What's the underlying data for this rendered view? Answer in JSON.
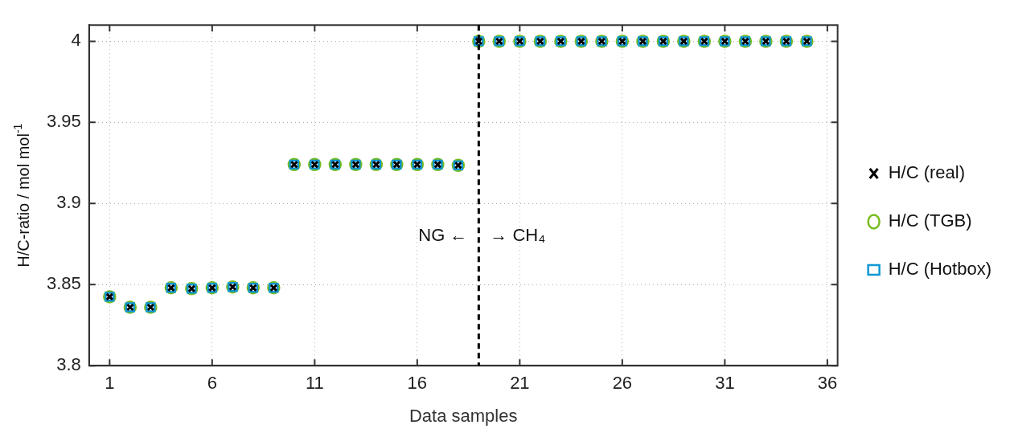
{
  "chart_data": {
    "type": "scatter",
    "xlabel": "Data samples",
    "ylabel": "H/C-ratio / mol mol$^{-1}$",
    "x": [
      1,
      2,
      3,
      4,
      5,
      6,
      7,
      8,
      9,
      10,
      11,
      12,
      13,
      14,
      15,
      16,
      17,
      18,
      19,
      20,
      21,
      22,
      23,
      24,
      25,
      26,
      27,
      28,
      29,
      30,
      31,
      32,
      33,
      34,
      35
    ],
    "series": [
      {
        "name": "H/C (real)",
        "color": "#000000",
        "marker": "cross",
        "values": [
          3.8425,
          3.836,
          3.836,
          3.848,
          3.8475,
          3.848,
          3.8485,
          3.848,
          3.848,
          3.924,
          3.924,
          3.924,
          3.924,
          3.924,
          3.924,
          3.924,
          3.924,
          3.9235,
          4,
          4,
          4,
          4,
          4,
          4,
          4,
          4,
          4,
          4,
          4,
          4,
          4,
          4,
          4,
          4,
          4
        ]
      },
      {
        "name": "H/C (TGB)",
        "color": "#77bc1f",
        "marker": "circle",
        "values": [
          3.8425,
          3.836,
          3.836,
          3.848,
          3.8475,
          3.848,
          3.8485,
          3.848,
          3.848,
          3.924,
          3.924,
          3.924,
          3.924,
          3.924,
          3.924,
          3.924,
          3.924,
          3.9235,
          4,
          4,
          4,
          4,
          4,
          4,
          4,
          4,
          4,
          4,
          4,
          4,
          4,
          4,
          4,
          4,
          4
        ]
      },
      {
        "name": "H/C (Hotbox)",
        "color": "#0f97d4",
        "marker": "square",
        "values": [
          3.8425,
          3.836,
          3.836,
          3.848,
          3.8475,
          3.848,
          3.8485,
          3.848,
          3.848,
          3.924,
          3.924,
          3.924,
          3.924,
          3.924,
          3.924,
          3.924,
          3.924,
          3.9235,
          4,
          4,
          4,
          4,
          4,
          4,
          4,
          4,
          4,
          4,
          4,
          4,
          4,
          4,
          4,
          4,
          4
        ]
      }
    ],
    "xlim": [
      0,
      36.5
    ],
    "xticks": [
      1,
      6,
      11,
      16,
      21,
      26,
      31,
      36
    ],
    "ylim": [
      3.8,
      4.01
    ],
    "yticks": [
      3.8,
      3.85,
      3.9,
      3.95,
      4
    ],
    "ref_lines": [
      {
        "axis": "x",
        "value": 19,
        "color": "#000000",
        "line_style": "dashed"
      }
    ],
    "annotations": [
      "NG ←",
      "→ CH₄"
    ],
    "grid": true,
    "legend": "right"
  }
}
